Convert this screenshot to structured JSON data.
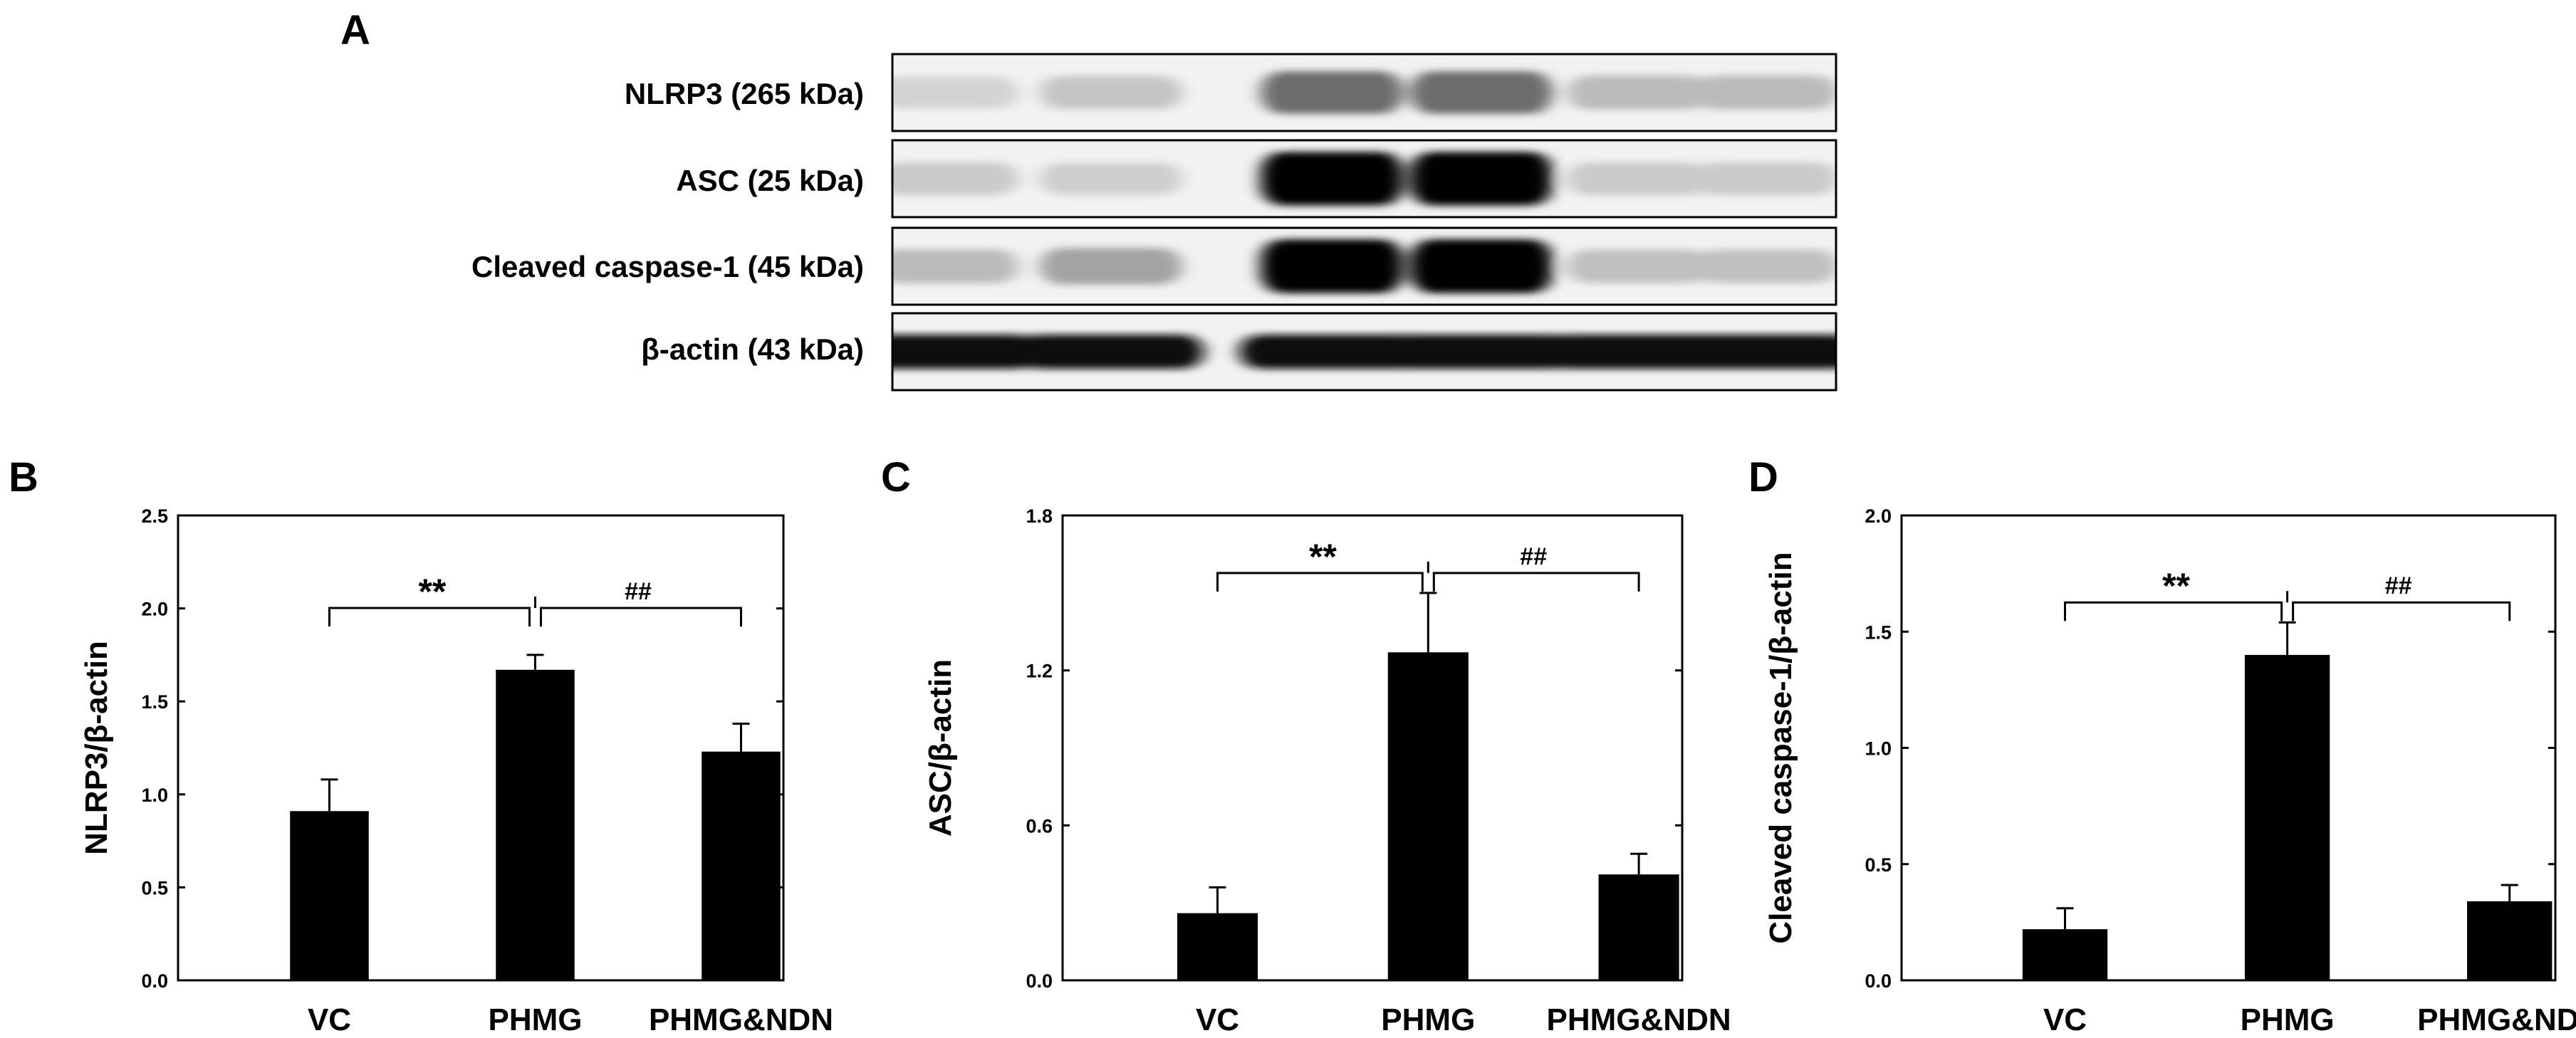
{
  "panel_a": {
    "letter": "A",
    "rows": [
      {
        "label": "NLRP3 (265 kDa)",
        "intensity": [
          0.12,
          0.18,
          0.55,
          0.22
        ]
      },
      {
        "label": "ASC (25 kDa)",
        "intensity": [
          0.16,
          0.14,
          0.98,
          0.16
        ]
      },
      {
        "label": "Cleaved caspase-1 (45 kDa)",
        "intensity": [
          0.22,
          0.32,
          0.99,
          0.2
        ]
      },
      {
        "label": "β-actin (43 kDa)",
        "intensity": [
          0.95,
          0.95,
          0.95,
          0.95
        ]
      }
    ]
  },
  "chart_data": [
    {
      "type": "bar",
      "panel": "B",
      "categories": [
        "VC",
        "PHMG",
        "PHMG&NDN"
      ],
      "values": [
        0.91,
        1.67,
        1.23
      ],
      "errors": [
        0.17,
        0.08,
        0.15
      ],
      "ylabel": "NLRP3/β-actin",
      "ylim": [
        0,
        2.5
      ],
      "yticks": [
        "0.0",
        "0.5",
        "1.0",
        "1.5",
        "2.0",
        "2.5"
      ],
      "annotations": [
        "**",
        "##"
      ]
    },
    {
      "type": "bar",
      "panel": "C",
      "categories": [
        "VC",
        "PHMG",
        "PHMG&NDN"
      ],
      "values": [
        0.26,
        1.27,
        0.41
      ],
      "errors": [
        0.1,
        0.23,
        0.08
      ],
      "ylabel": "ASC/β-actin",
      "ylim": [
        0,
        1.8
      ],
      "yticks": [
        "0.0",
        "0.6",
        "1.2",
        "1.8"
      ],
      "annotations": [
        "**",
        "##"
      ]
    },
    {
      "type": "bar",
      "panel": "D",
      "categories": [
        "VC",
        "PHMG",
        "PHMG&NDN"
      ],
      "values": [
        0.22,
        1.4,
        0.34
      ],
      "errors": [
        0.09,
        0.14,
        0.07
      ],
      "ylabel": "Cleaved caspase-1/β-actin",
      "ylim": [
        0,
        2.0
      ],
      "yticks": [
        "0.0",
        "0.5",
        "1.0",
        "1.5",
        "2.0"
      ],
      "annotations": [
        "**",
        "##"
      ]
    }
  ]
}
